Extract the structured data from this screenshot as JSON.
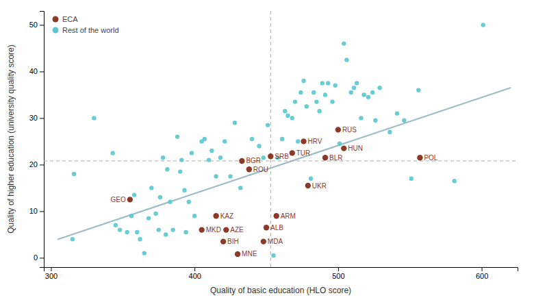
{
  "chart_data": {
    "type": "scatter",
    "x_label": "Quality of basic education (HLO score)",
    "y_label": "Quality of higher education (university quality score)",
    "xlim": [
      295,
      625
    ],
    "ylim": [
      -2,
      53
    ],
    "xticks": [
      300,
      400,
      500,
      600
    ],
    "yticks": [
      0,
      10,
      20,
      30,
      40,
      50
    ],
    "grid": false,
    "legend": "upper left",
    "series": [
      {
        "name": "ECA",
        "color": "#8B3A2A",
        "marker": "circle",
        "x": [
          355,
          415,
          405,
          422,
          450,
          420,
          448,
          430,
          457,
          479,
          433,
          438,
          453,
          468,
          476,
          500,
          491,
          504,
          557
        ],
        "values": [
          12.5,
          9.0,
          6.0,
          6.0,
          6.5,
          3.5,
          3.5,
          0.8,
          9.0,
          15.5,
          20.8,
          19.0,
          21.8,
          22.5,
          25.0,
          27.5,
          21.5,
          23.5,
          21.5
        ],
        "labels": [
          "GEO",
          "KAZ",
          "MKD",
          "AZE",
          "ALB",
          "BIH",
          "MDA",
          "MNE",
          "ARM",
          "UKR",
          "BGR",
          "ROU",
          "SRB",
          "TUR",
          "HRV",
          "RUS",
          "BLR",
          "HUN",
          "POL"
        ]
      },
      {
        "name": "Rest of the world",
        "color": "#5BC8D0",
        "marker": "circle",
        "x": [
          315,
          316,
          330,
          343,
          345,
          348,
          353,
          356,
          358,
          360,
          362,
          365,
          368,
          370,
          373,
          375,
          376,
          378,
          380,
          381,
          383,
          385,
          388,
          390,
          391,
          393,
          394,
          396,
          398,
          400,
          405,
          407,
          410,
          412,
          415,
          418,
          421,
          425,
          428,
          432,
          440,
          445,
          448,
          451,
          455,
          458,
          461,
          463,
          465,
          468,
          470,
          472,
          474,
          476,
          478,
          481,
          483,
          485,
          487,
          489,
          491,
          493,
          496,
          498,
          501,
          504,
          506,
          509,
          511,
          513,
          516,
          518,
          521,
          524,
          526,
          529,
          536,
          541,
          546,
          551,
          556,
          581,
          601
        ],
        "values": [
          4.0,
          18.0,
          30.0,
          22.5,
          7.0,
          6.0,
          5.5,
          9.0,
          13.5,
          5.5,
          4.0,
          1.0,
          8.5,
          15.0,
          9.5,
          6.0,
          13.0,
          21.5,
          5.0,
          19.0,
          12.0,
          6.0,
          26.0,
          18.5,
          21.0,
          14.5,
          5.5,
          12.0,
          22.5,
          9.0,
          25.0,
          25.5,
          21.0,
          23.0,
          17.5,
          21.5,
          25.0,
          17.5,
          29.0,
          15.0,
          25.5,
          24.0,
          21.5,
          28.5,
          0.5,
          21.5,
          25.5,
          31.5,
          30.5,
          30.0,
          33.5,
          25.0,
          35.5,
          38.0,
          32.5,
          17.0,
          35.5,
          33.5,
          31.5,
          37.5,
          35.0,
          37.5,
          33.5,
          37.0,
          24.5,
          46.0,
          42.5,
          35.5,
          36.5,
          37.5,
          30.0,
          35.0,
          34.5,
          35.5,
          29.5,
          36.5,
          27.0,
          31.0,
          29.5,
          17.0,
          36.0,
          16.5,
          50.0
        ]
      }
    ],
    "trend": {
      "x": [
        305,
        620
      ],
      "values": [
        4.0,
        36.5
      ],
      "color": "#9DBDC6",
      "line_style": "solid"
    },
    "hline": 20.8,
    "vline": 453
  }
}
